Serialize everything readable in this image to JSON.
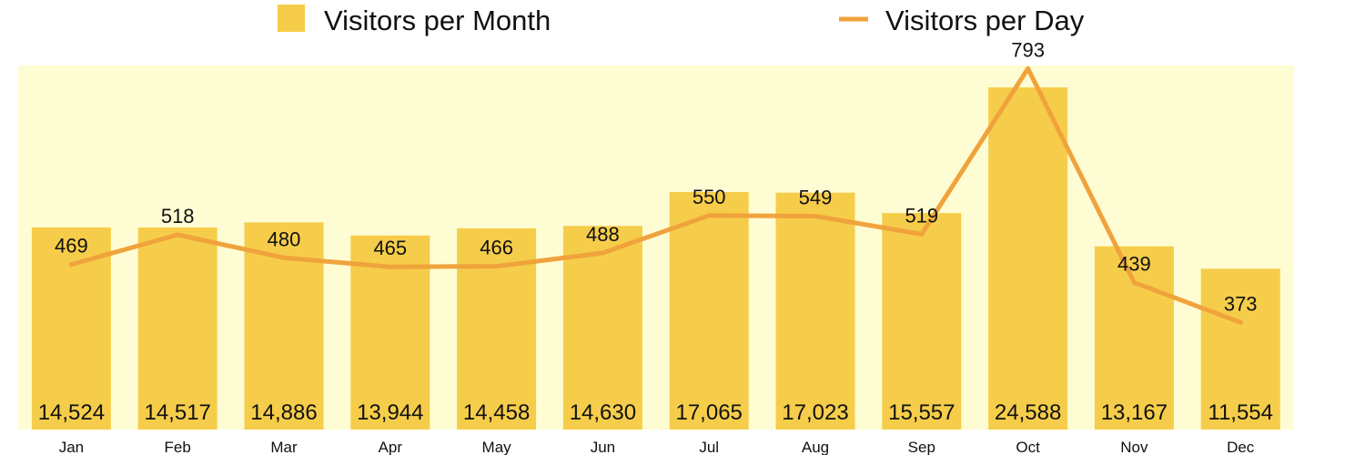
{
  "chart_data": {
    "type": "bar",
    "categories": [
      "Jan",
      "Feb",
      "Mar",
      "Apr",
      "May",
      "Jun",
      "Jul",
      "Aug",
      "Sep",
      "Oct",
      "Nov",
      "Dec"
    ],
    "series": [
      {
        "name": "Visitors per Month",
        "kind": "bar",
        "values": [
          14524,
          14517,
          14886,
          13944,
          14458,
          14630,
          17065,
          17023,
          15557,
          24588,
          13167,
          11554
        ],
        "labels": [
          "14,524",
          "14,517",
          "14,886",
          "13,944",
          "14,458",
          "14,630",
          "17,065",
          "17,023",
          "15,557",
          "24,588",
          "13,167",
          "11,554"
        ],
        "color": "#F6CD4A"
      },
      {
        "name": "Visitors per Day",
        "kind": "line",
        "values": [
          469,
          518,
          480,
          465,
          466,
          488,
          550,
          549,
          519,
          793,
          439,
          373
        ],
        "labels": [
          "469",
          "518",
          "480",
          "465",
          "466",
          "488",
          "550",
          "549",
          "519",
          "793",
          "439",
          "373"
        ],
        "color": "#F0A33C"
      }
    ],
    "plot_background": "#FEFCD2",
    "legend_position": "top",
    "grid": false
  }
}
